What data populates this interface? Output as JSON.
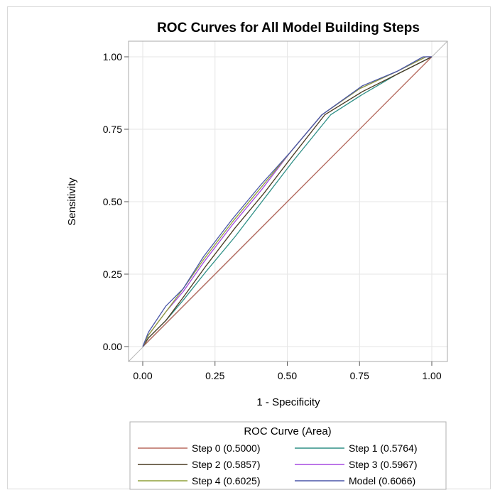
{
  "chart_data": {
    "type": "line",
    "title": "ROC Curves for All Model Building Steps",
    "xlabel": "1 - Specificity",
    "ylabel": "Sensitivity",
    "xlim": [
      0,
      1
    ],
    "ylim": [
      0,
      1
    ],
    "xticks": [
      "0.00",
      "0.25",
      "0.50",
      "0.75",
      "1.00"
    ],
    "yticks": [
      "0.00",
      "0.25",
      "0.50",
      "0.75",
      "1.00"
    ],
    "grid": true,
    "reference_line": "diagonal",
    "legend": {
      "title": "ROC Curve (Area)",
      "placement": "bottom"
    },
    "series": [
      {
        "name": "Step 0",
        "area": "(0.5000)",
        "color": "#b86a5e",
        "x": [
          0,
          1
        ],
        "y": [
          0,
          1
        ]
      },
      {
        "name": "Step 1",
        "area": "(0.5764)",
        "color": "#2e8f86",
        "x": [
          0,
          0.02,
          0.08,
          0.14,
          0.22,
          0.32,
          0.42,
          0.52,
          0.65,
          0.76,
          0.88,
          1.0
        ],
        "y": [
          0,
          0.03,
          0.09,
          0.16,
          0.26,
          0.38,
          0.51,
          0.64,
          0.8,
          0.87,
          0.94,
          1.0
        ]
      },
      {
        "name": "Step 2",
        "area": "(0.5857)",
        "color": "#4a3a22",
        "x": [
          0,
          0.02,
          0.08,
          0.14,
          0.22,
          0.32,
          0.42,
          0.52,
          0.63,
          0.76,
          0.88,
          1.0
        ],
        "y": [
          0,
          0.03,
          0.09,
          0.17,
          0.28,
          0.41,
          0.53,
          0.66,
          0.8,
          0.88,
          0.94,
          1.0
        ]
      },
      {
        "name": "Step 3",
        "area": "(0.5967)",
        "color": "#a64ae0",
        "x": [
          0,
          0.02,
          0.08,
          0.14,
          0.21,
          0.31,
          0.41,
          0.51,
          0.62,
          0.75,
          0.88,
          0.98,
          1.0
        ],
        "y": [
          0,
          0.04,
          0.12,
          0.19,
          0.29,
          0.42,
          0.54,
          0.67,
          0.8,
          0.89,
          0.95,
          1.0,
          1.0
        ]
      },
      {
        "name": "Step 4",
        "area": "(0.6025)",
        "color": "#8fa13a",
        "x": [
          0,
          0.02,
          0.08,
          0.14,
          0.21,
          0.31,
          0.41,
          0.51,
          0.62,
          0.75,
          0.88,
          0.98,
          1.0
        ],
        "y": [
          0,
          0.04,
          0.12,
          0.2,
          0.3,
          0.43,
          0.55,
          0.67,
          0.8,
          0.89,
          0.95,
          1.0,
          1.0
        ]
      },
      {
        "name": "Model",
        "area": "(0.6066)",
        "color": "#4a56a8",
        "x": [
          0,
          0.02,
          0.08,
          0.14,
          0.21,
          0.31,
          0.41,
          0.51,
          0.62,
          0.76,
          0.88,
          0.97,
          1.0
        ],
        "y": [
          0,
          0.05,
          0.14,
          0.2,
          0.31,
          0.44,
          0.56,
          0.67,
          0.8,
          0.9,
          0.95,
          1.0,
          1.0
        ]
      }
    ]
  }
}
